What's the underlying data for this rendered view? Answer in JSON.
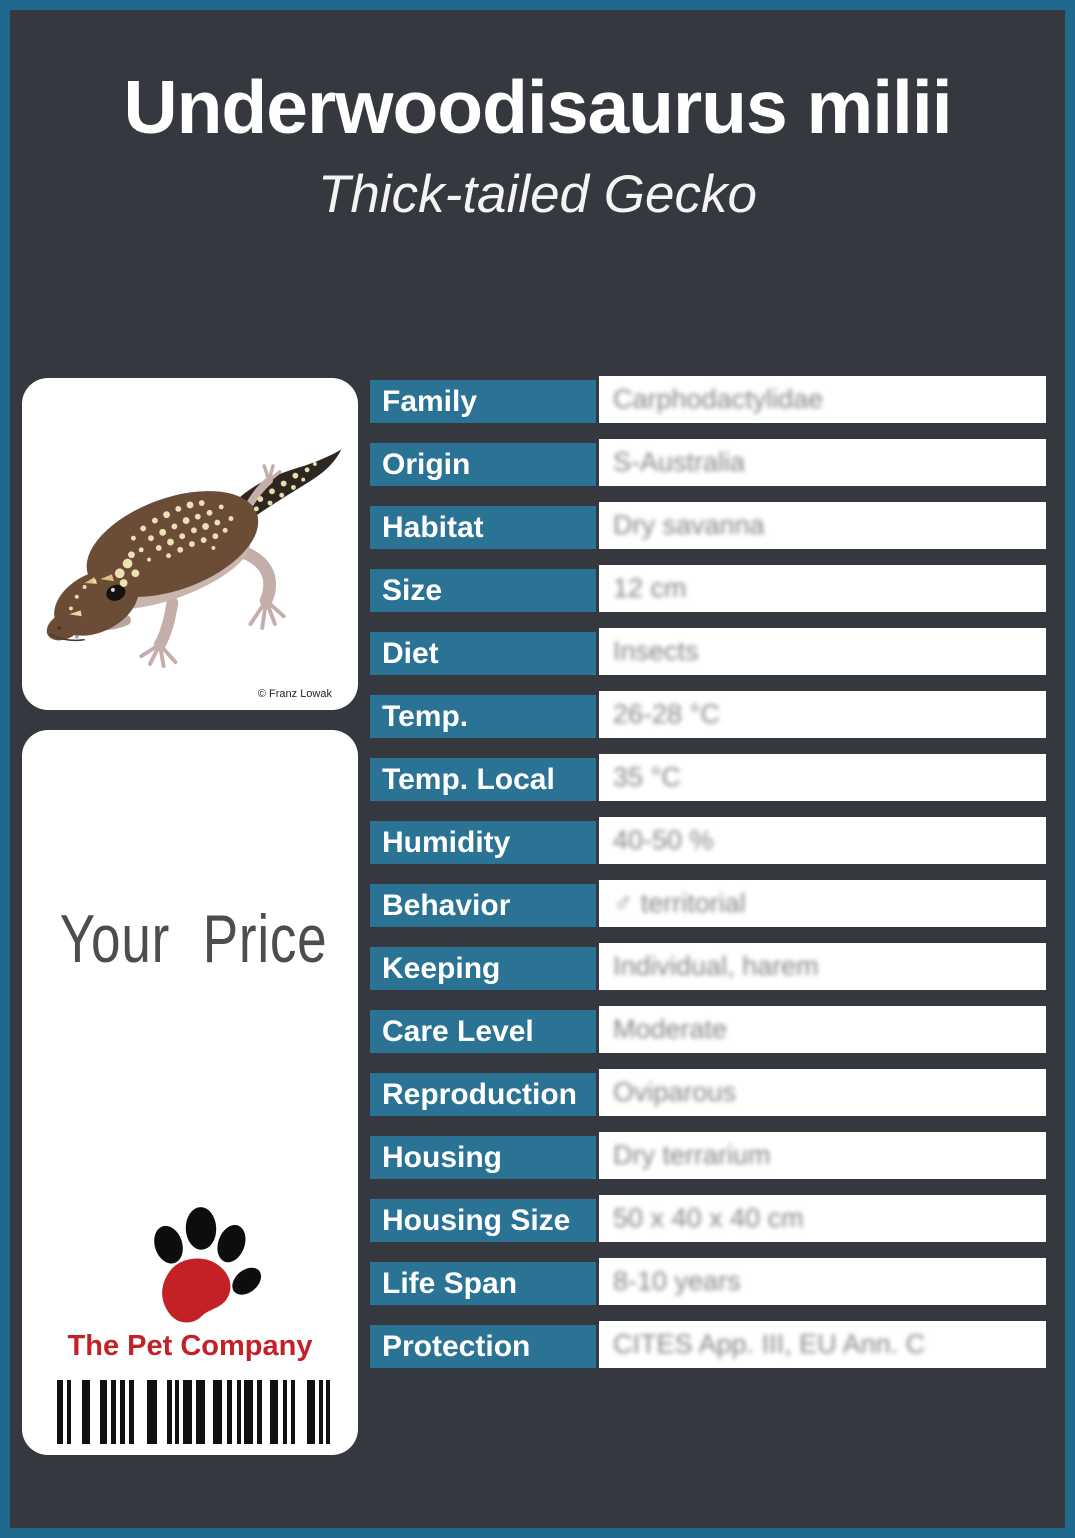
{
  "header": {
    "title": "Underwoodisaurus milii",
    "subtitle": "Thick-tailed Gecko"
  },
  "photo_panel": {
    "image": "thick-tailed-gecko-photo",
    "credit": "© Franz Lowak"
  },
  "price_panel": {
    "price_label": "Your Price",
    "company_name": "The Pet Company",
    "logo": "paw-print-icon",
    "barcode_pattern": [
      6,
      4,
      4,
      11,
      8,
      10,
      7,
      4,
      5,
      4,
      5,
      4,
      5,
      13,
      10,
      10,
      5,
      3,
      4,
      4,
      9,
      4,
      9,
      8,
      9,
      5,
      5,
      5,
      4,
      3,
      9,
      4,
      5,
      8,
      8,
      5,
      4,
      4,
      4,
      12,
      8,
      4,
      4,
      3,
      4
    ]
  },
  "table": {
    "rows": [
      {
        "label": "Family",
        "value": "Carphodactylidae"
      },
      {
        "label": "Origin",
        "value": "S-Australia"
      },
      {
        "label": "Habitat",
        "value": "Dry savanna"
      },
      {
        "label": "Size",
        "value": "12 cm"
      },
      {
        "label": "Diet",
        "value": "Insects"
      },
      {
        "label": "Temp.",
        "value": "26-28 °C"
      },
      {
        "label": "Temp. Local",
        "value": "35 °C"
      },
      {
        "label": "Humidity",
        "value": "40-50 %"
      },
      {
        "label": "Behavior",
        "value": "♂ territorial"
      },
      {
        "label": "Keeping",
        "value": "Individual, harem"
      },
      {
        "label": "Care Level",
        "value": "Moderate"
      },
      {
        "label": "Reproduction",
        "value": "Oviparous"
      },
      {
        "label": "Housing",
        "value": "Dry terrarium"
      },
      {
        "label": "Housing Size",
        "value": "50 x 40 x 40 cm"
      },
      {
        "label": "Life Span",
        "value": "8-10 years"
      },
      {
        "label": "Protection",
        "value": "CITES App. III, EU Ann. C"
      }
    ]
  },
  "colors": {
    "page_border": "#1e698d",
    "background": "#36383f",
    "label_blue": "#2b7394",
    "company_red": "#c42127",
    "value_gray": "#858585"
  }
}
